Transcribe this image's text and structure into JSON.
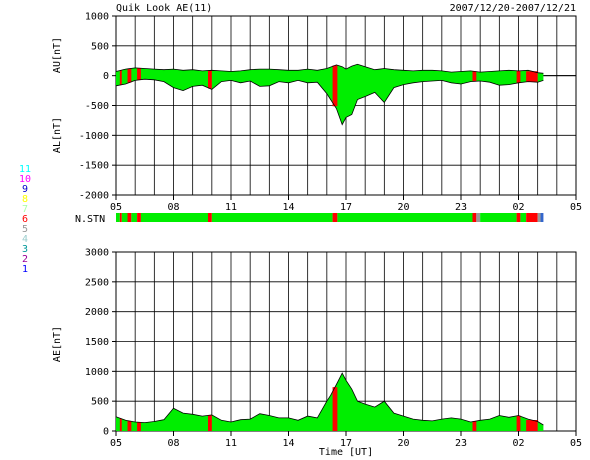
{
  "header": {
    "title": "Quik Look AE(11)",
    "date_range": "2007/12/20-2007/12/21"
  },
  "station_count_legend": [
    {
      "label": "11",
      "color": "#00ffff"
    },
    {
      "label": "10",
      "color": "#ff00ff"
    },
    {
      "label": "9",
      "color": "#0000cc"
    },
    {
      "label": "8",
      "color": "#ffff00"
    },
    {
      "label": "7",
      "color": "#aaffaa"
    },
    {
      "label": "6",
      "color": "#ff0000"
    },
    {
      "label": "5",
      "color": "#999999"
    },
    {
      "label": "4",
      "color": "#99cccc"
    },
    {
      "label": "3",
      "color": "#009999"
    },
    {
      "label": "2",
      "color": "#990099"
    },
    {
      "label": "1",
      "color": "#0000ff"
    }
  ],
  "nstn_label": "N.STN",
  "colors": {
    "fill_main": "#00ee00",
    "fill_red": "#ff0000",
    "outline": "#000000",
    "grid": "#000000"
  },
  "chart_data": [
    {
      "type": "area",
      "panel": "AU/AL",
      "ylabel_top": "AU[nT]",
      "ylabel_bottom": "AL[nT]",
      "xlabel": "",
      "x_unit": "hours since 2007/12/20 05:00 UT",
      "xlim": [
        0,
        24
      ],
      "ylim": [
        -2000,
        1000
      ],
      "yticks": [
        "1000",
        "500",
        "0",
        "-500",
        "-1000",
        "-1500",
        "-2000"
      ],
      "xticks": [
        "05",
        "08",
        "11",
        "14",
        "17",
        "20",
        "23",
        "02",
        "05"
      ],
      "grid": true,
      "data_end_hour": 22.3,
      "AU": {
        "x": [
          0,
          0.5,
          1,
          1.5,
          2,
          2.5,
          3,
          3.5,
          4,
          4.5,
          5,
          5.5,
          6,
          6.5,
          7,
          7.5,
          8,
          8.5,
          9,
          9.5,
          10,
          10.5,
          11,
          11.5,
          11.8,
          12,
          12.3,
          12.6,
          13,
          13.5,
          14,
          14.5,
          15,
          15.5,
          16,
          16.5,
          17,
          17.5,
          18,
          18.5,
          19,
          19.5,
          20,
          20.5,
          21,
          21.5,
          22,
          22.3
        ],
        "values": [
          70,
          110,
          130,
          120,
          110,
          100,
          110,
          90,
          100,
          80,
          90,
          80,
          70,
          80,
          100,
          110,
          110,
          100,
          90,
          90,
          110,
          90,
          120,
          180,
          150,
          110,
          160,
          190,
          150,
          100,
          120,
          100,
          90,
          80,
          90,
          90,
          80,
          60,
          70,
          80,
          60,
          70,
          80,
          90,
          80,
          90,
          50,
          40
        ]
      },
      "AL": {
        "x": [
          0,
          0.5,
          1,
          1.5,
          2,
          2.5,
          3,
          3.5,
          4,
          4.5,
          5,
          5.5,
          6,
          6.5,
          7,
          7.5,
          8,
          8.5,
          9,
          9.5,
          10,
          10.5,
          11,
          11.5,
          11.8,
          12,
          12.3,
          12.6,
          13,
          13.5,
          14,
          14.5,
          15,
          15.5,
          16,
          16.5,
          17,
          17.5,
          18,
          18.5,
          19,
          19.5,
          20,
          20.5,
          21,
          21.5,
          22,
          22.3
        ],
        "values": [
          -170,
          -140,
          -80,
          -60,
          -70,
          -100,
          -200,
          -250,
          -180,
          -160,
          -230,
          -100,
          -80,
          -120,
          -90,
          -180,
          -170,
          -100,
          -120,
          -80,
          -120,
          -110,
          -300,
          -550,
          -820,
          -700,
          -650,
          -400,
          -350,
          -280,
          -450,
          -200,
          -150,
          -120,
          -100,
          -90,
          -80,
          -120,
          -140,
          -100,
          -90,
          -110,
          -160,
          -150,
          -120,
          -100,
          -110,
          -80
        ]
      },
      "red_segments_hours": [
        [
          0.2,
          0.3
        ],
        [
          0.6,
          0.8
        ],
        [
          1.1,
          1.3
        ],
        [
          4.8,
          5.0
        ],
        [
          11.3,
          11.55
        ],
        [
          18.6,
          18.8
        ],
        [
          20.9,
          21.1
        ],
        [
          21.4,
          22.0
        ]
      ]
    },
    {
      "type": "area",
      "panel": "AE",
      "ylabel": "AE[nT]",
      "xlabel": "Time [UT]",
      "x_unit": "hours since 2007/12/20 05:00 UT",
      "xlim": [
        0,
        24
      ],
      "ylim": [
        0,
        3000
      ],
      "yticks": [
        "3000",
        "2500",
        "2000",
        "1500",
        "1000",
        "500",
        "0"
      ],
      "xticks": [
        "05",
        "08",
        "11",
        "14",
        "17",
        "20",
        "23",
        "02",
        "05"
      ],
      "grid": true,
      "x": [
        0,
        0.5,
        1,
        1.5,
        2,
        2.5,
        3,
        3.5,
        4,
        4.5,
        5,
        5.5,
        6,
        6.5,
        7,
        7.5,
        8,
        8.5,
        9,
        9.5,
        10,
        10.5,
        11,
        11.2,
        11.5,
        11.8,
        12,
        12.3,
        12.6,
        13,
        13.5,
        14,
        14.5,
        15,
        15.5,
        16,
        16.5,
        17,
        17.5,
        18,
        18.5,
        19,
        19.5,
        20,
        20.5,
        21,
        21.5,
        22,
        22.3
      ],
      "values": [
        240,
        180,
        150,
        140,
        160,
        190,
        380,
        300,
        280,
        250,
        270,
        180,
        150,
        190,
        200,
        290,
        260,
        220,
        220,
        180,
        250,
        220,
        500,
        600,
        780,
        970,
        850,
        700,
        500,
        450,
        400,
        500,
        300,
        250,
        200,
        180,
        170,
        200,
        220,
        200,
        150,
        180,
        200,
        260,
        230,
        260,
        200,
        160,
        100
      ],
      "red_segments_hours": [
        [
          0.2,
          0.3
        ],
        [
          0.6,
          0.8
        ],
        [
          1.1,
          1.3
        ],
        [
          4.8,
          5.0
        ],
        [
          11.3,
          11.55
        ],
        [
          18.6,
          18.8
        ],
        [
          20.9,
          21.1
        ],
        [
          21.4,
          22.0
        ]
      ]
    },
    {
      "type": "heatmap",
      "panel": "N.STN",
      "xlim": [
        0,
        24
      ],
      "segments": [
        {
          "x": [
            0,
            0.2
          ],
          "stations": "7",
          "color": "#00ee00"
        },
        {
          "x": [
            0.2,
            0.3
          ],
          "stations": "6",
          "color": "#ff0000"
        },
        {
          "x": [
            0.3,
            0.6
          ],
          "stations": "7",
          "color": "#00ee00"
        },
        {
          "x": [
            0.6,
            0.8
          ],
          "stations": "6",
          "color": "#ff0000"
        },
        {
          "x": [
            0.8,
            1.1
          ],
          "stations": "7",
          "color": "#00ee00"
        },
        {
          "x": [
            1.1,
            1.3
          ],
          "stations": "6",
          "color": "#ff0000"
        },
        {
          "x": [
            1.3,
            4.8
          ],
          "stations": "7",
          "color": "#00ee00"
        },
        {
          "x": [
            4.8,
            5.0
          ],
          "stations": "6",
          "color": "#ff0000"
        },
        {
          "x": [
            5.0,
            11.3
          ],
          "stations": "7",
          "color": "#00ee00"
        },
        {
          "x": [
            11.3,
            11.55
          ],
          "stations": "6",
          "color": "#ff0000"
        },
        {
          "x": [
            11.55,
            18.6
          ],
          "stations": "7",
          "color": "#00ee00"
        },
        {
          "x": [
            18.6,
            18.8
          ],
          "stations": "6",
          "color": "#ff0000"
        },
        {
          "x": [
            18.8,
            19.0
          ],
          "stations": "5",
          "color": "#999999"
        },
        {
          "x": [
            19.0,
            20.9
          ],
          "stations": "7",
          "color": "#00ee00"
        },
        {
          "x": [
            20.9,
            21.1
          ],
          "stations": "6",
          "color": "#ff0000"
        },
        {
          "x": [
            21.1,
            21.4
          ],
          "stations": "7",
          "color": "#00ee00"
        },
        {
          "x": [
            21.4,
            22.0
          ],
          "stations": "6",
          "color": "#ff0000"
        },
        {
          "x": [
            22.0,
            22.15
          ],
          "stations": "5",
          "color": "#999999"
        },
        {
          "x": [
            22.15,
            22.3
          ],
          "stations": "1",
          "color": "#3366cc"
        }
      ]
    }
  ]
}
